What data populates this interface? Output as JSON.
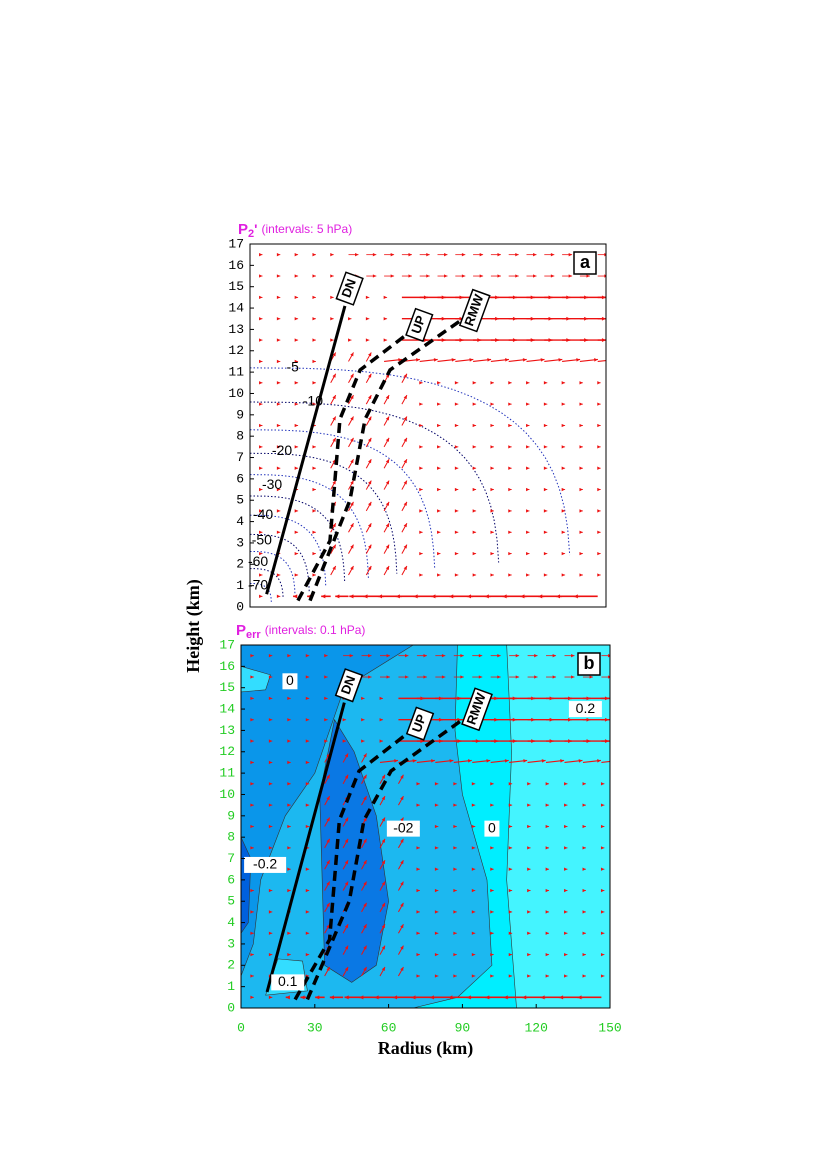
{
  "chart_data": [
    {
      "type": "vector",
      "panel_label": "a",
      "title": {
        "symbol": "P",
        "subscript": "2",
        "suffix": "'",
        "note": "(intervals: 5 hPa)"
      },
      "title_color": "#e020e0",
      "tick_color": "#000000",
      "xlim": [
        0,
        150
      ],
      "ylim": [
        0,
        17
      ],
      "yticks": [
        0,
        1,
        2,
        3,
        4,
        5,
        6,
        7,
        8,
        9,
        10,
        11,
        12,
        13,
        14,
        15,
        16,
        17
      ],
      "lines": [
        {
          "name": "DN",
          "style": "solid",
          "x": [
            7,
            40
          ],
          "y": [
            0.6,
            14.1
          ]
        },
        {
          "name": "UP",
          "style": "dashed",
          "x": [
            20.2,
            33.7,
            37.9,
            46.4,
            65.3
          ],
          "y": [
            0.3,
            3.1,
            8.8,
            11.1,
            12.7
          ]
        },
        {
          "name": "RMW",
          "style": "dashed",
          "x": [
            25.3,
            42.1,
            48.5,
            59,
            88.5
          ],
          "y": [
            0.3,
            5,
            8.8,
            11.1,
            13.4
          ]
        }
      ],
      "annotations": [
        {
          "text": "-5",
          "x": 18,
          "y": 11.2
        },
        {
          "text": "-10",
          "x": 26.5,
          "y": 9.6
        },
        {
          "text": "-20",
          "x": 13.5,
          "y": 7.3
        },
        {
          "text": "-30",
          "x": 9.3,
          "y": 5.7
        },
        {
          "text": "-40",
          "x": 5.5,
          "y": 4.3
        },
        {
          "text": "-50",
          "x": 5,
          "y": 3.1
        },
        {
          "text": "-60",
          "x": 3.4,
          "y": 2.1
        },
        {
          "text": "-70",
          "x": 3.4,
          "y": 1.0
        }
      ]
    },
    {
      "type": "vector",
      "panel_label": "b",
      "title": {
        "symbol": "P",
        "subscript": "err",
        "note": "(intervals: 0.1 hPa)"
      },
      "title_color": "#e020e0",
      "tick_color": "#22cc22",
      "xlim": [
        0,
        150
      ],
      "ylim": [
        0,
        17
      ],
      "xticks": [
        0,
        30,
        60,
        90,
        120,
        150
      ],
      "yticks": [
        0,
        1,
        2,
        3,
        4,
        5,
        6,
        7,
        8,
        9,
        10,
        11,
        12,
        13,
        14,
        15,
        16,
        17
      ],
      "xlabel": "Radius (km)",
      "ylabel": "Height (km)",
      "lines": [
        {
          "name": "DN",
          "style": "solid",
          "x": [
            10.6,
            42
          ],
          "y": [
            0.75,
            14.3
          ]
        },
        {
          "name": "UP",
          "style": "dashed",
          "x": [
            22,
            36,
            40,
            48,
            67
          ],
          "y": [
            0.4,
            3.2,
            8.8,
            11.1,
            12.8
          ]
        },
        {
          "name": "RMW",
          "style": "dashed",
          "x": [
            27,
            44,
            50,
            61,
            90
          ],
          "y": [
            0.4,
            5,
            8.8,
            11.1,
            13.5
          ]
        }
      ],
      "annotations": [
        {
          "text": "0",
          "x": 19.9,
          "y": 15.3
        },
        {
          "text": "-0.2",
          "x": 9.8,
          "y": 6.7
        },
        {
          "text": "-02",
          "x": 66,
          "y": 8.4
        },
        {
          "text": "0",
          "x": 102,
          "y": 8.4
        },
        {
          "text": "0.2",
          "x": 140,
          "y": 14
        },
        {
          "text": "0.1",
          "x": 19,
          "y": 1.2
        }
      ]
    }
  ]
}
